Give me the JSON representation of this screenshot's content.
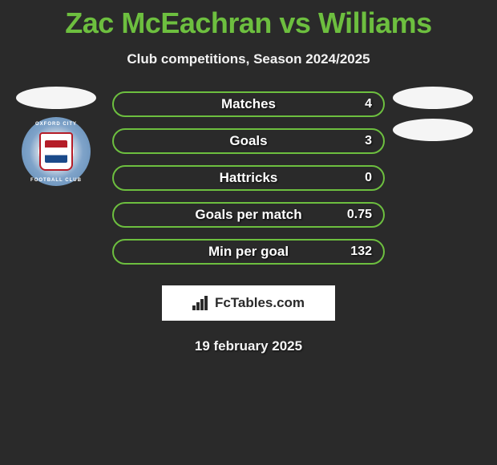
{
  "title": "Zac McEachran vs Williams",
  "subtitle": "Club competitions, Season 2024/2025",
  "date": "19 february 2025",
  "watermark_text": "FcTables.com",
  "colors": {
    "accent": "#6dbf3f",
    "background": "#2a2a2a",
    "text": "#ffffff",
    "ellipse": "#f5f5f5"
  },
  "left_club": {
    "name": "Oxford City",
    "badge_text_top": "OXFORD CITY",
    "badge_text_bottom": "FOOTBALL CLUB"
  },
  "stats": [
    {
      "label": "Matches",
      "value": "4"
    },
    {
      "label": "Goals",
      "value": "3"
    },
    {
      "label": "Hattricks",
      "value": "0"
    },
    {
      "label": "Goals per match",
      "value": "0.75"
    },
    {
      "label": "Min per goal",
      "value": "132"
    }
  ],
  "stat_row_style": {
    "border_width": 2,
    "border_radius": 16,
    "height": 32,
    "gap": 14,
    "label_fontsize": 17,
    "value_fontsize": 16,
    "font_weight": 700
  }
}
